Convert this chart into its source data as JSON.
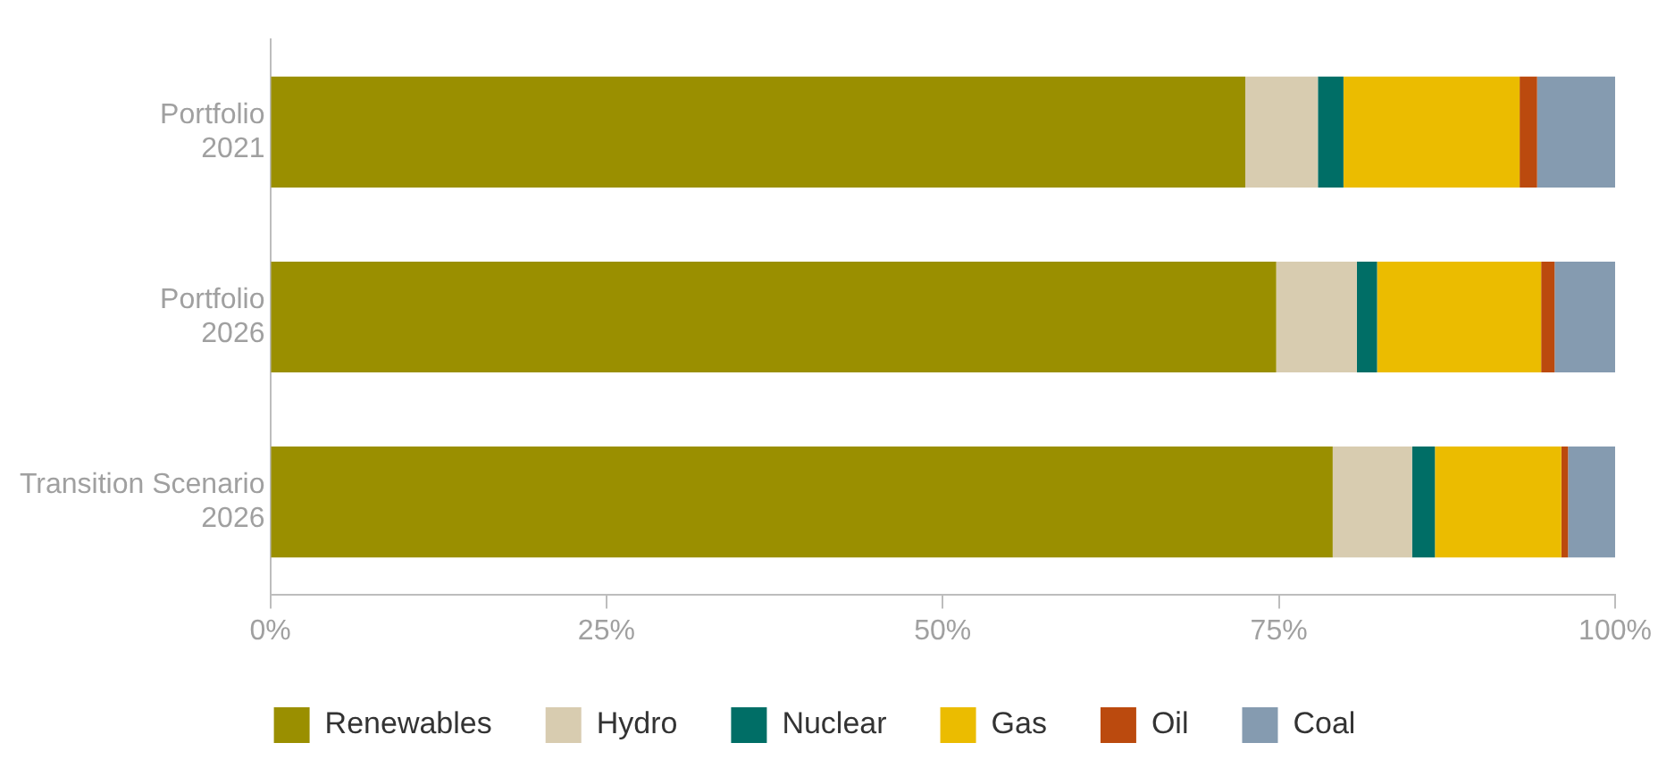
{
  "chart_data": {
    "type": "bar",
    "orientation": "horizontal",
    "stacked": true,
    "categories": [
      "Portfolio 2021",
      "Portfolio 2026",
      "Transition Scenario 2026"
    ],
    "series": [
      {
        "name": "Renewables",
        "color": "#9a8f00",
        "values": [
          72.5,
          74.8,
          79.0
        ]
      },
      {
        "name": "Hydro",
        "color": "#d8ccb0",
        "values": [
          5.4,
          6.0,
          5.9
        ]
      },
      {
        "name": "Nuclear",
        "color": "#006e66",
        "values": [
          1.9,
          1.5,
          1.7
        ]
      },
      {
        "name": "Gas",
        "color": "#ebbc00",
        "values": [
          13.1,
          12.2,
          9.4
        ]
      },
      {
        "name": "Oil",
        "color": "#bb4a0e",
        "values": [
          1.3,
          1.0,
          0.5
        ]
      },
      {
        "name": "Coal",
        "color": "#859bb0",
        "values": [
          5.8,
          4.5,
          3.5
        ]
      }
    ],
    "xlim": [
      0,
      100
    ],
    "xticks": [
      {
        "value": 0,
        "label": "0%"
      },
      {
        "value": 25,
        "label": "25%"
      },
      {
        "value": 50,
        "label": "50%"
      },
      {
        "value": 75,
        "label": "75%"
      },
      {
        "value": 100,
        "label": "100%"
      }
    ],
    "grid": false,
    "legend": "bottom"
  }
}
